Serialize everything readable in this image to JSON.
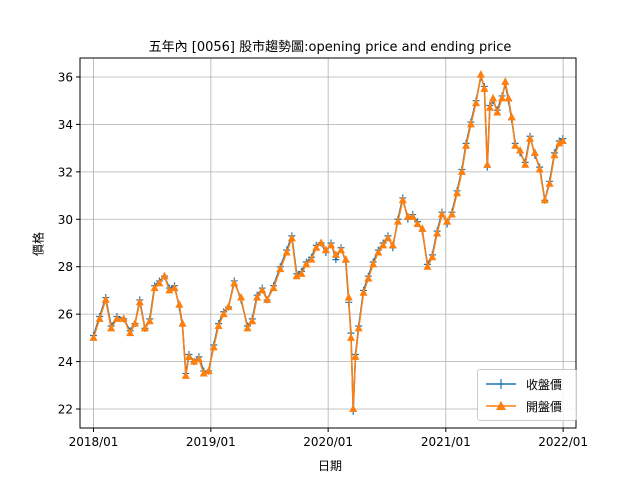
{
  "chart_data": {
    "type": "line",
    "title": "五年內 [0056] 股市趨勢圖:opening price and ending price",
    "xlabel": "日期",
    "ylabel": "價格",
    "x_ticks": [
      "2018/01",
      "2019/01",
      "2020/01",
      "2021/01",
      "2022/01"
    ],
    "y_ticks": [
      22,
      24,
      26,
      28,
      30,
      32,
      34,
      36
    ],
    "xlim": [
      "2017-11-20",
      "2022-02-10"
    ],
    "ylim": [
      21.2,
      36.8
    ],
    "grid": true,
    "legend_position": "lower-right",
    "series": [
      {
        "name": "收盤價",
        "color": "#1f77b4",
        "marker": "+"
      },
      {
        "name": "開盤價",
        "color": "#ff7f0e",
        "marker": "^"
      }
    ],
    "x": [
      "2018-01-01",
      "2018-01-20",
      "2018-02-08",
      "2018-02-25",
      "2018-03-15",
      "2018-04-05",
      "2018-04-25",
      "2018-05-10",
      "2018-05-25",
      "2018-06-10",
      "2018-06-25",
      "2018-07-10",
      "2018-07-25",
      "2018-08-10",
      "2018-08-25",
      "2018-09-10",
      "2018-09-25",
      "2018-10-05",
      "2018-10-15",
      "2018-10-25",
      "2018-11-10",
      "2018-11-25",
      "2018-12-10",
      "2018-12-25",
      "2019-01-10",
      "2019-01-25",
      "2019-02-10",
      "2019-02-25",
      "2019-03-15",
      "2019-04-05",
      "2019-04-25",
      "2019-05-10",
      "2019-05-25",
      "2019-06-10",
      "2019-06-25",
      "2019-07-15",
      "2019-08-05",
      "2019-08-25",
      "2019-09-10",
      "2019-09-25",
      "2019-10-10",
      "2019-10-25",
      "2019-11-10",
      "2019-11-25",
      "2019-12-10",
      "2019-12-25",
      "2020-01-10",
      "2020-01-25",
      "2020-02-10",
      "2020-02-25",
      "2020-03-05",
      "2020-03-12",
      "2020-03-19",
      "2020-03-26",
      "2020-04-05",
      "2020-04-20",
      "2020-05-05",
      "2020-05-20",
      "2020-06-05",
      "2020-06-20",
      "2020-07-05",
      "2020-07-20",
      "2020-08-05",
      "2020-08-20",
      "2020-09-05",
      "2020-09-20",
      "2020-10-05",
      "2020-10-20",
      "2020-11-05",
      "2020-11-20",
      "2020-12-05",
      "2020-12-20",
      "2021-01-05",
      "2021-01-20",
      "2021-02-05",
      "2021-02-20",
      "2021-03-05",
      "2021-03-20",
      "2021-04-05",
      "2021-04-20",
      "2021-05-01",
      "2021-05-10",
      "2021-05-18",
      "2021-05-28",
      "2021-06-10",
      "2021-06-25",
      "2021-07-05",
      "2021-07-15",
      "2021-07-25",
      "2021-08-05",
      "2021-08-20",
      "2021-09-05",
      "2021-09-20",
      "2021-10-05",
      "2021-10-20",
      "2021-11-05",
      "2021-11-20",
      "2021-12-05",
      "2021-12-20",
      "2021-12-31"
    ],
    "close": [
      25.1,
      25.9,
      26.7,
      25.5,
      25.9,
      25.8,
      25.3,
      25.6,
      26.6,
      25.4,
      25.8,
      27.2,
      27.4,
      27.6,
      27.1,
      27.2,
      26.3,
      25.5,
      23.5,
      24.3,
      24.0,
      24.2,
      23.6,
      23.6,
      24.7,
      25.6,
      26.1,
      26.3,
      27.4,
      26.6,
      25.5,
      25.8,
      26.8,
      27.1,
      26.6,
      27.2,
      28.0,
      28.7,
      29.3,
      27.7,
      27.8,
      28.2,
      28.4,
      28.9,
      29.0,
      28.6,
      29.0,
      28.3,
      28.8,
      28.2,
      26.5,
      25.2,
      21.9,
      24.3,
      25.5,
      27.0,
      27.6,
      28.2,
      28.7,
      29.0,
      29.3,
      28.8,
      30.0,
      30.9,
      30.0,
      30.2,
      29.9,
      29.5,
      28.1,
      28.5,
      29.5,
      30.3,
      29.8,
      30.3,
      31.2,
      32.1,
      33.2,
      34.1,
      35.0,
      36.0,
      35.6,
      32.2,
      34.8,
      35.0,
      34.6,
      35.2,
      35.7,
      35.0,
      34.2,
      33.2,
      32.8,
      32.4,
      33.5,
      32.7,
      32.2,
      30.8,
      31.6,
      32.8,
      33.3,
      33.4
    ],
    "open": [
      25.0,
      25.8,
      26.6,
      25.4,
      25.8,
      25.8,
      25.2,
      25.6,
      26.5,
      25.4,
      25.7,
      27.1,
      27.3,
      27.6,
      27.0,
      27.1,
      26.4,
      25.6,
      23.4,
      24.2,
      24.0,
      24.1,
      23.5,
      23.6,
      24.6,
      25.5,
      26.0,
      26.3,
      27.3,
      26.7,
      25.4,
      25.7,
      26.7,
      27.0,
      26.6,
      27.1,
      27.9,
      28.6,
      29.2,
      27.6,
      27.7,
      28.1,
      28.3,
      28.8,
      29.0,
      28.7,
      28.9,
      28.5,
      28.7,
      28.3,
      26.7,
      25.0,
      22.0,
      24.2,
      25.4,
      26.9,
      27.5,
      28.1,
      28.6,
      28.9,
      29.2,
      28.9,
      29.9,
      30.8,
      30.1,
      30.1,
      29.8,
      29.6,
      28.0,
      28.4,
      29.4,
      30.2,
      29.9,
      30.2,
      31.1,
      32.0,
      33.1,
      34.0,
      34.9,
      36.1,
      35.5,
      32.3,
      34.7,
      35.1,
      34.5,
      35.1,
      35.8,
      35.1,
      34.3,
      33.1,
      32.9,
      32.3,
      33.4,
      32.8,
      32.1,
      30.8,
      31.5,
      32.7,
      33.2,
      33.3
    ]
  },
  "legend": {
    "items": [
      "收盤價",
      "開盤價"
    ]
  }
}
